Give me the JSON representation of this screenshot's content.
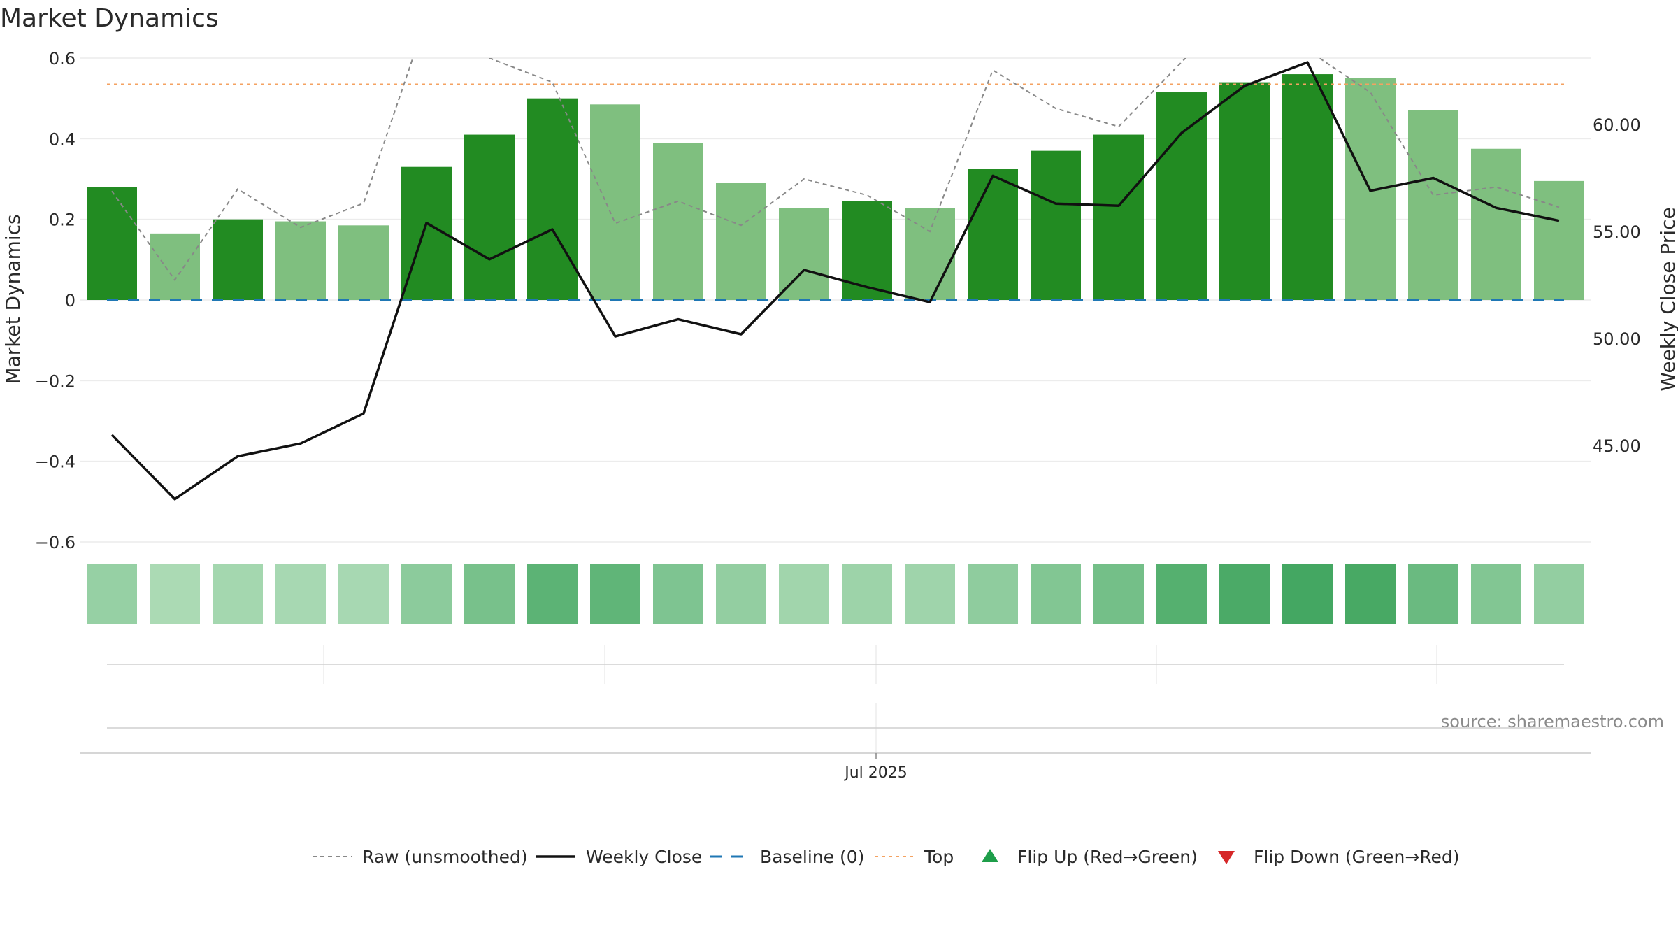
{
  "chart_data": {
    "type": "bar",
    "title": "Market Dynamics",
    "ylabel_left": "Market Dynamics",
    "ylabel_right": "Weekly Close Price",
    "ylim_left": [
      -0.6,
      0.6
    ],
    "ylim_right": [
      40.5,
      63.1
    ],
    "left_ticks": [
      "0.6",
      "0.4",
      "0.2",
      "0",
      "−0.2",
      "−0.4",
      "−0.6"
    ],
    "left_tick_values": [
      0.6,
      0.4,
      0.2,
      0,
      -0.2,
      -0.4,
      -0.6
    ],
    "right_ticks": [
      "60.00",
      "55.00",
      "50.00",
      "45.00"
    ],
    "right_tick_values": [
      60,
      55,
      50,
      45
    ],
    "x_tick_label": "Jul 2025",
    "source": "source: sharemaestro.com",
    "grid": true,
    "legend_position": "bottom",
    "top_level": 0.535,
    "baseline": 0,
    "bars": [
      {
        "value": 0.28,
        "strong": true
      },
      {
        "value": 0.165,
        "strong": false
      },
      {
        "value": 0.2,
        "strong": true
      },
      {
        "value": 0.195,
        "strong": false
      },
      {
        "value": 0.185,
        "strong": false
      },
      {
        "value": 0.33,
        "strong": true
      },
      {
        "value": 0.41,
        "strong": true
      },
      {
        "value": 0.5,
        "strong": true
      },
      {
        "value": 0.485,
        "strong": false
      },
      {
        "value": 0.39,
        "strong": false
      },
      {
        "value": 0.29,
        "strong": false
      },
      {
        "value": 0.228,
        "strong": false
      },
      {
        "value": 0.245,
        "strong": true
      },
      {
        "value": 0.228,
        "strong": false
      },
      {
        "value": 0.325,
        "strong": true
      },
      {
        "value": 0.37,
        "strong": true
      },
      {
        "value": 0.41,
        "strong": true
      },
      {
        "value": 0.515,
        "strong": true
      },
      {
        "value": 0.54,
        "strong": true
      },
      {
        "value": 0.56,
        "strong": true
      },
      {
        "value": 0.55,
        "strong": false
      },
      {
        "value": 0.47,
        "strong": false
      },
      {
        "value": 0.375,
        "strong": false
      },
      {
        "value": 0.295,
        "strong": false
      }
    ],
    "raw": [
      0.27,
      0.05,
      0.275,
      0.18,
      0.24,
      0.7,
      0.6,
      0.54,
      0.19,
      0.245,
      0.185,
      0.3,
      0.26,
      0.17,
      0.57,
      0.475,
      0.43,
      0.59,
      0.75,
      0.62,
      0.515,
      0.26,
      0.28,
      0.23
    ],
    "weekly_close": [
      45.5,
      42.5,
      44.5,
      45.1,
      46.5,
      55.4,
      53.7,
      55.1,
      50.1,
      50.9,
      50.2,
      53.2,
      52.4,
      51.7,
      57.6,
      56.3,
      56.2,
      59.6,
      61.8,
      62.9,
      56.9,
      57.5,
      56.1,
      55.5
    ],
    "heat_intensity": [
      0.32,
      0.2,
      0.24,
      0.22,
      0.22,
      0.38,
      0.5,
      0.66,
      0.64,
      0.46,
      0.34,
      0.26,
      0.28,
      0.27,
      0.36,
      0.44,
      0.52,
      0.7,
      0.76,
      0.8,
      0.78,
      0.58,
      0.44,
      0.34
    ],
    "colors": {
      "bar_strong": "#228B22",
      "bar_light": "#7FBF7F",
      "weekly_close": "#111111",
      "raw": "#888888",
      "baseline": "#1f77b4",
      "top": "#f4a261",
      "flip_up": "#1e9e4a",
      "flip_down": "#d62728",
      "grid": "#ececec"
    },
    "legend": [
      {
        "label": "Raw (unsmoothed)",
        "style": "dotted-gray"
      },
      {
        "label": "Weekly Close",
        "style": "solid-black"
      },
      {
        "label": "Baseline (0)",
        "style": "dashed-blue"
      },
      {
        "label": "Top",
        "style": "dotted-orange"
      },
      {
        "label": "Flip Up (Red→Green)",
        "style": "triangle-up-green"
      },
      {
        "label": "Flip Down (Green→Red)",
        "style": "triangle-down-red"
      }
    ]
  }
}
